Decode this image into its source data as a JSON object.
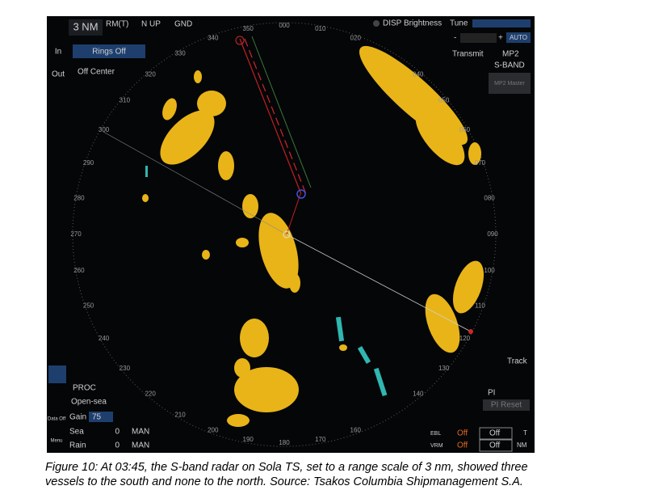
{
  "header": {
    "range": "3 NM",
    "motion": "RM(T)",
    "orientation": "N UP",
    "stabilization": "GND",
    "brightness": "DISP Brightness",
    "tune": "Tune",
    "tune_minus": "-",
    "tune_plus": "+",
    "tune_auto": "AUTO"
  },
  "left_panel": {
    "zoom_in": "In",
    "zoom_out": "Out",
    "rings": "Rings Off",
    "center": "Off Center",
    "data": "Data Off",
    "menu": "Menu"
  },
  "right_panel": {
    "transmit": "Transmit",
    "mode": "MP2",
    "band": "S-BAND",
    "master": "MP2 Master",
    "track": "Track",
    "pi": "PI",
    "pi_reset": "PI Reset"
  },
  "bearings": [
    "340",
    "350",
    "000",
    "010",
    "020",
    "040",
    "050",
    "060",
    "070",
    "080",
    "090",
    "100",
    "110",
    "120",
    "130",
    "140",
    "160",
    "170",
    "180",
    "190",
    "200",
    "210",
    "220",
    "230",
    "240",
    "250",
    "260",
    "270",
    "280",
    "290",
    "300",
    "310",
    "320",
    "330"
  ],
  "processing": {
    "proc": "PROC",
    "preset": "Open-sea",
    "gain_label": "Gain",
    "gain_value": "75",
    "sea_label": "Sea",
    "sea_value": "0",
    "sea_mode": "MAN",
    "rain_label": "Rain",
    "rain_value": "0",
    "rain_mode": "MAN"
  },
  "ebl_vrm": {
    "ebl": "EBL",
    "ebl_1": "Off",
    "ebl_2": "Off",
    "ebl_unit": "T",
    "vrm": "VRM",
    "vrm_1": "Off",
    "vrm_2": "Off",
    "vrm_unit": "NM"
  },
  "caption": {
    "line1": "Figure 10: At 03:45, the S-band radar on Sola TS, set to a range scale of 3 nm, showed three",
    "line2": "vessels to the south and none to the north. Source: Tsakos Columbia Shipmanagement S.A."
  }
}
